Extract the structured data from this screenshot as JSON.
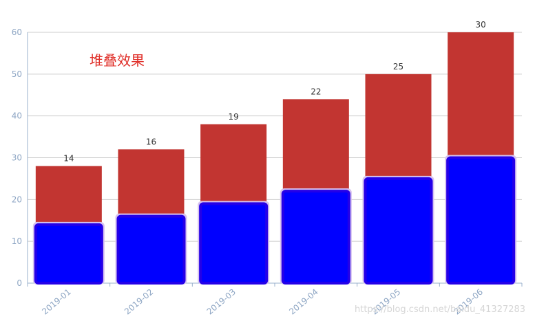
{
  "chart_data": {
    "type": "bar",
    "title": "堆叠效果",
    "categories": [
      "2019-01",
      "2019-02",
      "2019-03",
      "2019-04",
      "2019-05",
      "2019-06"
    ],
    "series": [
      {
        "values": [
          14,
          16,
          19,
          22,
          25,
          30
        ],
        "color": "#0000ff"
      },
      {
        "values": [
          14,
          16,
          19,
          22,
          25,
          30
        ],
        "color": "#c23531"
      }
    ],
    "stacked": true,
    "ylim": [
      0,
      60
    ],
    "yticks": [
      0,
      10,
      20,
      30,
      40,
      50,
      60
    ],
    "grid": true,
    "xlabel": "",
    "ylabel": ""
  },
  "watermark": "https://blog.csdn.net/baidu_41327283"
}
